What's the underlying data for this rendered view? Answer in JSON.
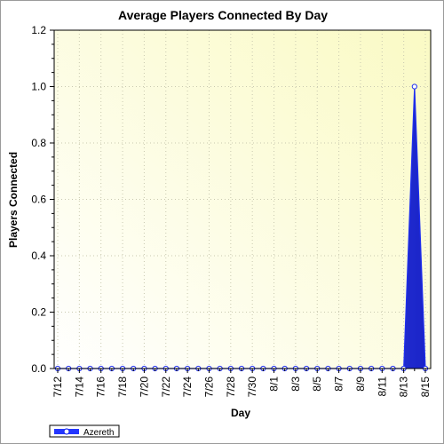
{
  "chart_data": {
    "type": "area",
    "title": "Average Players Connected By Day",
    "xlabel": "Day",
    "ylabel": "Players Connected",
    "ylim": [
      0,
      1.2
    ],
    "yticks": [
      "0.0",
      "0.2",
      "0.4",
      "0.6",
      "0.8",
      "1.0",
      "1.2"
    ],
    "x": [
      "7/12",
      "7/13",
      "7/14",
      "7/15",
      "7/16",
      "7/17",
      "7/18",
      "7/19",
      "7/20",
      "7/21",
      "7/22",
      "7/23",
      "7/24",
      "7/25",
      "7/26",
      "7/27",
      "7/28",
      "7/29",
      "7/30",
      "7/31",
      "8/1",
      "8/2",
      "8/3",
      "8/4",
      "8/5",
      "8/6",
      "8/7",
      "8/8",
      "8/9",
      "8/10",
      "8/11",
      "8/12",
      "8/13",
      "8/14",
      "8/15"
    ],
    "xtick_labels": [
      "7/12",
      "7/14",
      "7/16",
      "7/18",
      "7/20",
      "7/22",
      "7/24",
      "7/26",
      "7/28",
      "7/30",
      "8/1",
      "8/3",
      "8/5",
      "8/7",
      "8/9",
      "8/11",
      "8/13",
      "8/15"
    ],
    "series": [
      {
        "name": "Azereth",
        "color": "#1f2ff0",
        "values": [
          0,
          0,
          0,
          0,
          0,
          0,
          0,
          0,
          0,
          0,
          0,
          0,
          0,
          0,
          0,
          0,
          0,
          0,
          0,
          0,
          0,
          0,
          0,
          0,
          0,
          0,
          0,
          0,
          0,
          0,
          0,
          0,
          0,
          1.0,
          0
        ]
      }
    ],
    "grid": true,
    "legend": "bottom-left"
  }
}
